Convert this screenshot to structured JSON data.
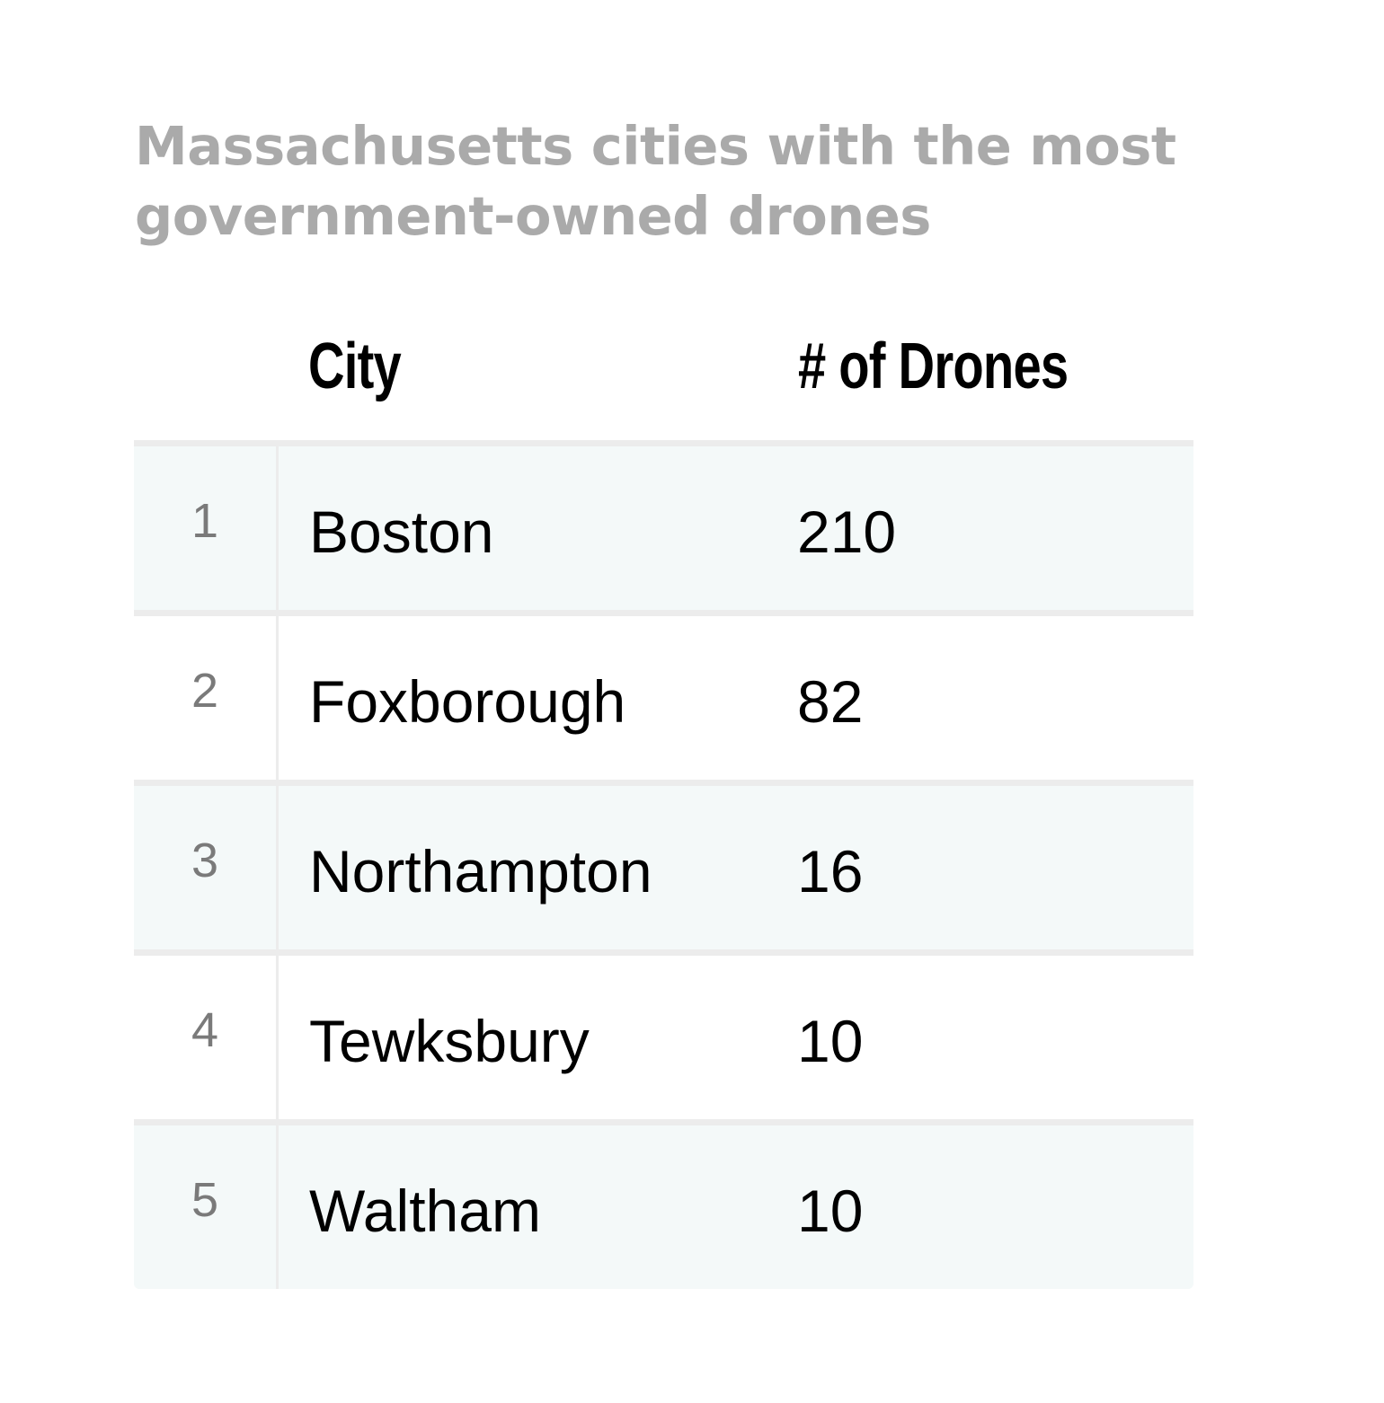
{
  "chart_data": {
    "type": "table",
    "title": "Massachusetts cities with the most government-owned drones",
    "columns": [
      "City",
      "# of Drones"
    ],
    "rows": [
      {
        "rank": "1",
        "city": "Boston",
        "drones": 210
      },
      {
        "rank": "2",
        "city": "Foxborough",
        "drones": 82
      },
      {
        "rank": "3",
        "city": "Northampton",
        "drones": 16
      },
      {
        "rank": "4",
        "city": "Tewksbury",
        "drones": 10
      },
      {
        "rank": "5",
        "city": "Waltham",
        "drones": 10
      }
    ],
    "colors": {
      "title": "#aaaaaa",
      "shaded_row": "#f4f9f9",
      "rule": "#ececec",
      "rank": "#7a7a7a"
    }
  }
}
